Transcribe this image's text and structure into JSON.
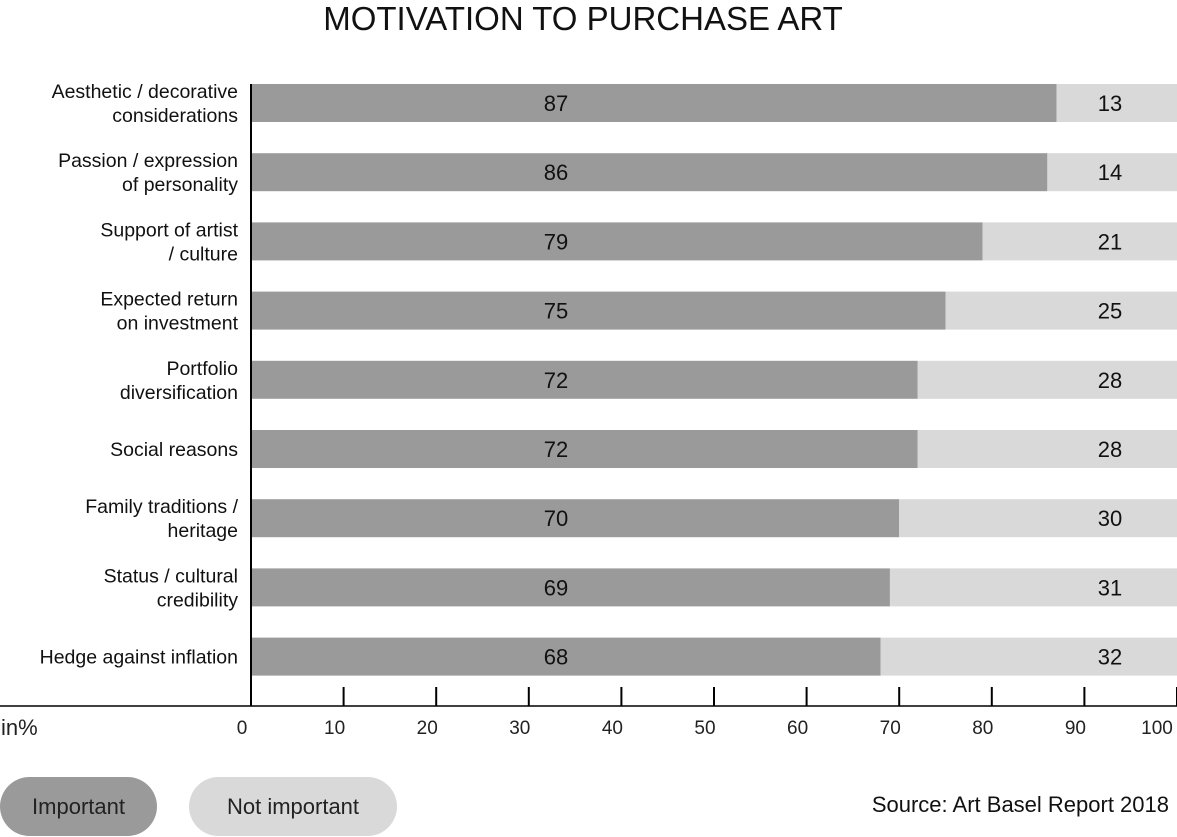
{
  "chart_data": {
    "type": "bar",
    "orientation": "horizontal",
    "stacked": true,
    "title": "MOTIVATION TO PURCHASE ART",
    "unit_label": "in%",
    "categories": [
      [
        "Aesthetic / decorative",
        "considerations"
      ],
      [
        "Passion / expression",
        "of personality"
      ],
      [
        "Support of artist",
        "/ culture"
      ],
      [
        "Expected return",
        "on investment"
      ],
      [
        "Portfolio",
        "diversification"
      ],
      [
        "Social reasons"
      ],
      [
        "Family traditions /",
        "heritage"
      ],
      [
        "Status / cultural",
        "credibility"
      ],
      [
        "Hedge against inflation"
      ]
    ],
    "series": [
      {
        "name": "Important",
        "color": "#9a9a9a",
        "values": [
          87,
          86,
          79,
          75,
          72,
          72,
          70,
          69,
          68
        ]
      },
      {
        "name": "Not important",
        "color": "#d9d9d9",
        "values": [
          13,
          14,
          21,
          25,
          28,
          28,
          30,
          31,
          32
        ]
      }
    ],
    "xlim": [
      0,
      100
    ],
    "xticks": [
      0,
      10,
      20,
      30,
      40,
      50,
      60,
      70,
      80,
      90,
      100
    ],
    "grid": false,
    "legend_position": "bottom-left",
    "source": "Source: Art Basel Report 2018"
  }
}
